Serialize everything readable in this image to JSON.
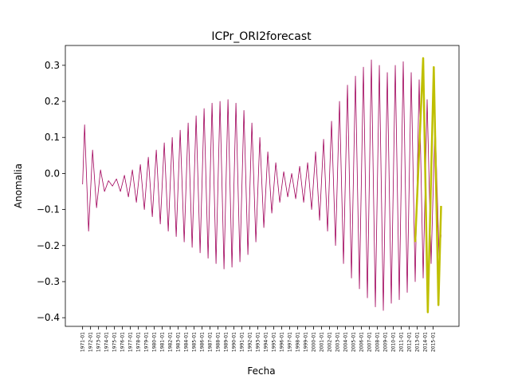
{
  "chart_data": {
    "type": "line",
    "title": "ICPr_ORI2forecast",
    "x_label": "Fecha",
    "y_label": "Anomalia",
    "xlim": [
      "1968-11",
      "2018-04"
    ],
    "xticks": [
      "1971-01",
      "1972-01",
      "1973-01",
      "1974-01",
      "1975-01",
      "1976-01",
      "1977-01",
      "1978-01",
      "1979-01",
      "1980-01",
      "1981-01",
      "1982-01",
      "1983-01",
      "1984-01",
      "1985-01",
      "1986-01",
      "1987-01",
      "1988-01",
      "1989-01",
      "1990-01",
      "1991-01",
      "1992-01",
      "1993-01",
      "1994-01",
      "1995-01",
      "1996-01",
      "1997-01",
      "1998-01",
      "1999-01",
      "2000-01",
      "2001-01",
      "2002-01",
      "2003-01",
      "2004-01",
      "2005-01",
      "2006-01",
      "2007-01",
      "2008-01",
      "2009-01",
      "2010-01",
      "2011-01",
      "2012-01",
      "2013-01",
      "2014-01",
      "2015-01"
    ],
    "ylim": [
      -0.424,
      0.355
    ],
    "yticks": [
      {
        "value": -0.4,
        "label": "−0.4"
      },
      {
        "value": -0.3,
        "label": "−0.3"
      },
      {
        "value": -0.2,
        "label": "−0.2"
      },
      {
        "value": -0.1,
        "label": "−0.1"
      },
      {
        "value": 0,
        "label": "0.0"
      },
      {
        "value": 0.1,
        "label": "0.1"
      },
      {
        "value": 0.2,
        "label": "0.2"
      },
      {
        "value": 0.3,
        "label": "0.3"
      }
    ],
    "series": [
      {
        "color": "#a0005a",
        "width": 0.8,
        "x": [
          "1971-01",
          "1971-04",
          "1971-10",
          "1972-04",
          "1972-10",
          "1973-04",
          "1973-10",
          "1974-04",
          "1974-10",
          "1975-04",
          "1975-10",
          "1976-04",
          "1976-10",
          "1977-04",
          "1977-10",
          "1978-04",
          "1978-10",
          "1979-04",
          "1979-10",
          "1980-04",
          "1980-10",
          "1981-04",
          "1981-10",
          "1982-04",
          "1982-10",
          "1983-04",
          "1983-10",
          "1984-04",
          "1984-10",
          "1985-04",
          "1985-10",
          "1986-04",
          "1986-10",
          "1987-04",
          "1987-10",
          "1988-04",
          "1988-10",
          "1989-04",
          "1989-10",
          "1990-04",
          "1990-10",
          "1991-04",
          "1991-10",
          "1992-04",
          "1992-10",
          "1993-04",
          "1993-10",
          "1994-04",
          "1994-10",
          "1995-04",
          "1995-10",
          "1996-04",
          "1996-10",
          "1997-04",
          "1997-10",
          "1998-04",
          "1998-10",
          "1999-04",
          "1999-10",
          "2000-04",
          "2000-10",
          "2001-04",
          "2001-10",
          "2002-04",
          "2002-10",
          "2003-04",
          "2003-10",
          "2004-04",
          "2004-10",
          "2005-04",
          "2005-10",
          "2006-04",
          "2006-10",
          "2007-04",
          "2007-10",
          "2008-04",
          "2008-10",
          "2009-04",
          "2009-10",
          "2010-04",
          "2010-10",
          "2011-04",
          "2011-10",
          "2012-04",
          "2012-10",
          "2013-04",
          "2013-10",
          "2014-04",
          "2014-10",
          "2015-04",
          "2015-10",
          "2016-01"
        ],
        "values": [
          -0.03,
          0.135,
          -0.16,
          0.065,
          -0.095,
          0.01,
          -0.05,
          -0.02,
          -0.035,
          -0.015,
          -0.05,
          -0.005,
          -0.065,
          0.01,
          -0.08,
          0.025,
          -0.1,
          0.045,
          -0.12,
          0.065,
          -0.14,
          0.085,
          -0.16,
          0.1,
          -0.175,
          0.12,
          -0.19,
          0.14,
          -0.205,
          0.16,
          -0.22,
          0.18,
          -0.235,
          0.195,
          -0.25,
          0.2,
          -0.265,
          0.205,
          -0.26,
          0.195,
          -0.245,
          0.175,
          -0.225,
          0.14,
          -0.19,
          0.1,
          -0.15,
          0.06,
          -0.11,
          0.03,
          -0.08,
          0.005,
          -0.065,
          0,
          -0.07,
          0.02,
          -0.08,
          0.03,
          -0.1,
          0.06,
          -0.13,
          0.095,
          -0.16,
          0.145,
          -0.2,
          0.2,
          -0.25,
          0.245,
          -0.29,
          0.27,
          -0.32,
          0.295,
          -0.345,
          0.315,
          -0.37,
          0.3,
          -0.38,
          0.28,
          -0.36,
          0.3,
          -0.35,
          0.31,
          -0.33,
          0.28,
          -0.3,
          0.26,
          -0.29,
          0.205,
          -0.25,
          0.15,
          -0.23,
          -0.17
        ]
      },
      {
        "color": "#bfbf00",
        "width": 2.5,
        "x": [
          "2012-10",
          "2013-10",
          "2014-05",
          "2015-02",
          "2015-09",
          "2016-01"
        ],
        "values": [
          -0.19,
          0.32,
          -0.385,
          0.295,
          -0.365,
          -0.09
        ]
      }
    ]
  }
}
